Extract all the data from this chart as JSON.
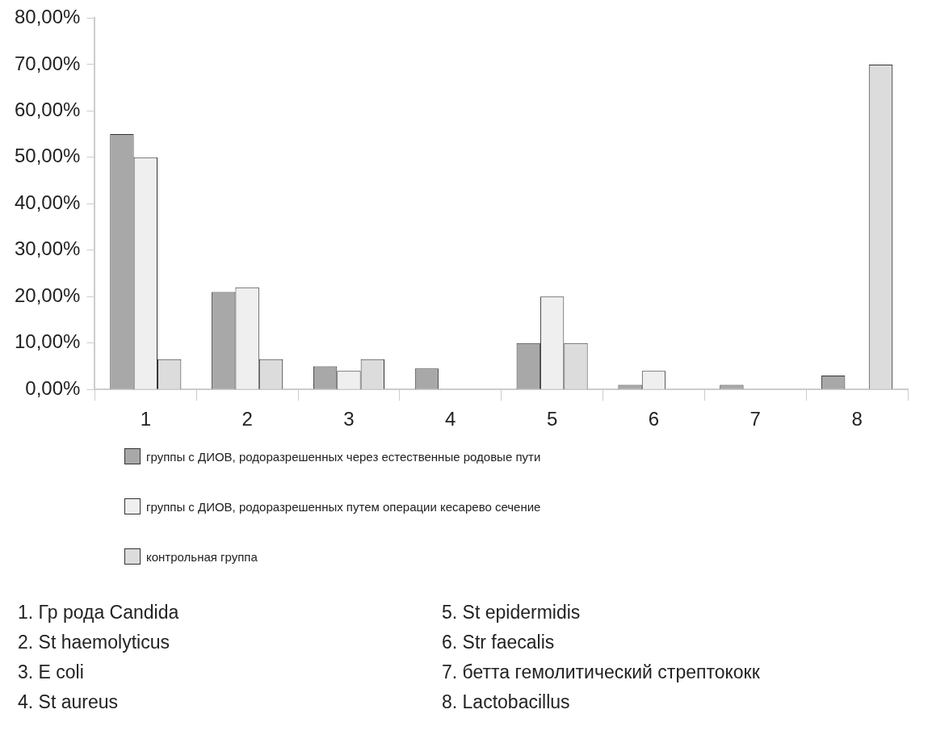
{
  "chart_data": {
    "type": "bar",
    "categories": [
      "1",
      "2",
      "3",
      "4",
      "5",
      "6",
      "7",
      "8"
    ],
    "series": [
      {
        "name": "группы с ДИОВ, родоразрешенных через естественные родовые пути",
        "color": "#a8a8a8",
        "values": [
          55,
          21,
          5,
          4.5,
          10,
          1,
          1,
          3
        ]
      },
      {
        "name": "группы с ДИОВ, родоразрешенных путем операции кесарево сечение",
        "color": "#efefef",
        "values": [
          50,
          22,
          4,
          null,
          20,
          4,
          null,
          null
        ]
      },
      {
        "name": "контрольная группа",
        "color": "#dcdcdc",
        "values": [
          6.5,
          6.5,
          6.5,
          null,
          10,
          null,
          null,
          70
        ]
      }
    ],
    "ylim": [
      0,
      80
    ],
    "yticks": [
      {
        "value": 0,
        "label": "0,00%"
      },
      {
        "value": 10,
        "label": "10,00%"
      },
      {
        "value": 20,
        "label": "20,00%"
      },
      {
        "value": 30,
        "label": "30,00%"
      },
      {
        "value": 40,
        "label": "40,00%"
      },
      {
        "value": 50,
        "label": "50,00%"
      },
      {
        "value": 60,
        "label": "60,00%"
      },
      {
        "value": 70,
        "label": "70,00%"
      },
      {
        "value": 80,
        "label": "80,00%"
      }
    ],
    "grid": false,
    "legend": "bottom",
    "annotations": [
      "1. Гр рода Candida",
      "2. St haemolyticus",
      "3. E coli",
      "4. St aureus",
      "5. St epidermidis",
      "6. Str faecalis",
      "7. бетта гемолитический стрептококк",
      "8. Lactobacillus"
    ]
  }
}
